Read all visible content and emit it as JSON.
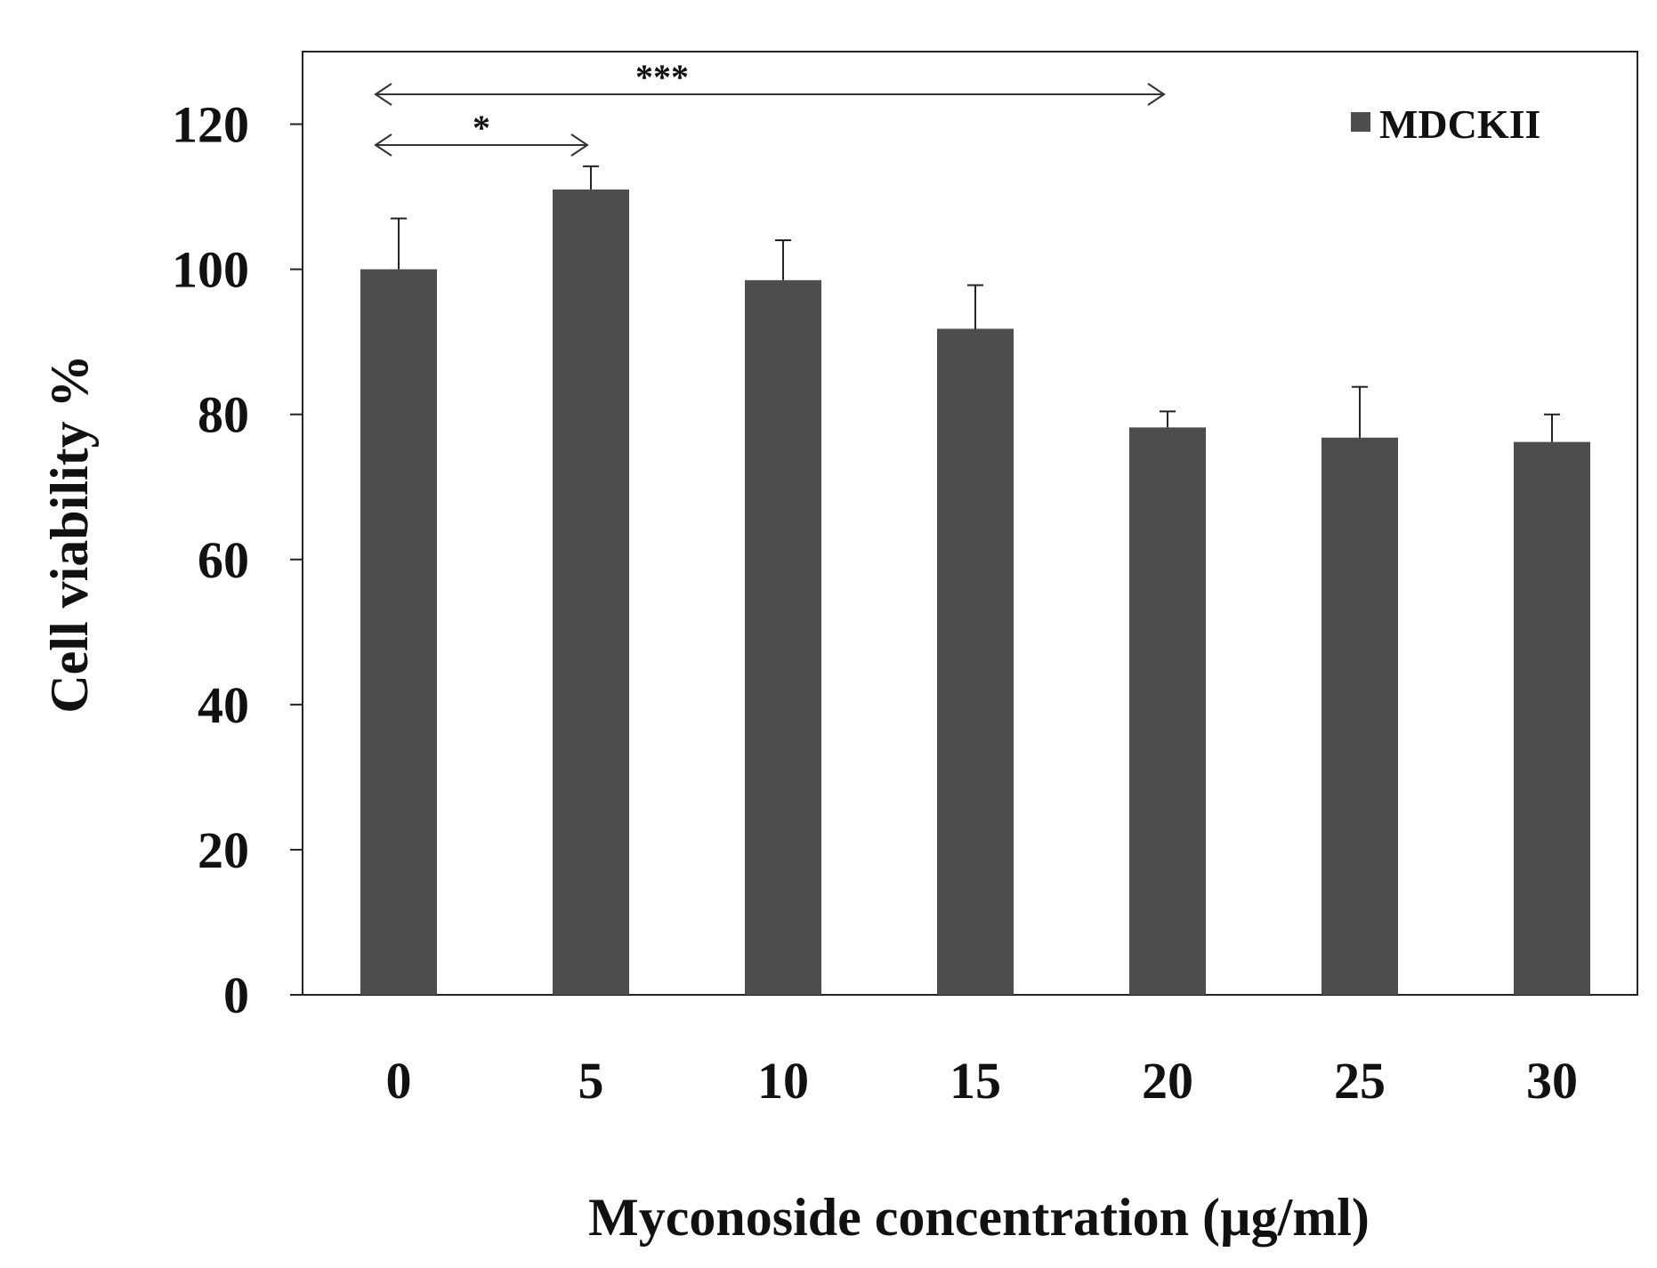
{
  "chart_data": {
    "type": "bar",
    "title": "",
    "xlabel": "Myconoside concentration (µg/ml)",
    "ylabel": "Cell  viability %",
    "categories": [
      "0",
      "5",
      "10",
      "15",
      "20",
      "25",
      "30"
    ],
    "series": [
      {
        "name": "MDCKII",
        "values": [
          100,
          111,
          98.5,
          91.8,
          78.2,
          76.8,
          76.2
        ],
        "errors": [
          7,
          3.2,
          5.5,
          6,
          2.2,
          7,
          3.8
        ]
      }
    ],
    "ylim": [
      0,
      130
    ],
    "yticks": [
      "0",
      "20",
      "40",
      "60",
      "80",
      "100",
      "120"
    ],
    "significance": [
      {
        "from": "0",
        "to": "5",
        "label": "*"
      },
      {
        "from": "0",
        "to": "20",
        "label": "***"
      }
    ],
    "legend_position": "top-right",
    "colors": {
      "bar": "#4d4d4d",
      "axis": "#222222",
      "arrow": "#333333"
    }
  }
}
